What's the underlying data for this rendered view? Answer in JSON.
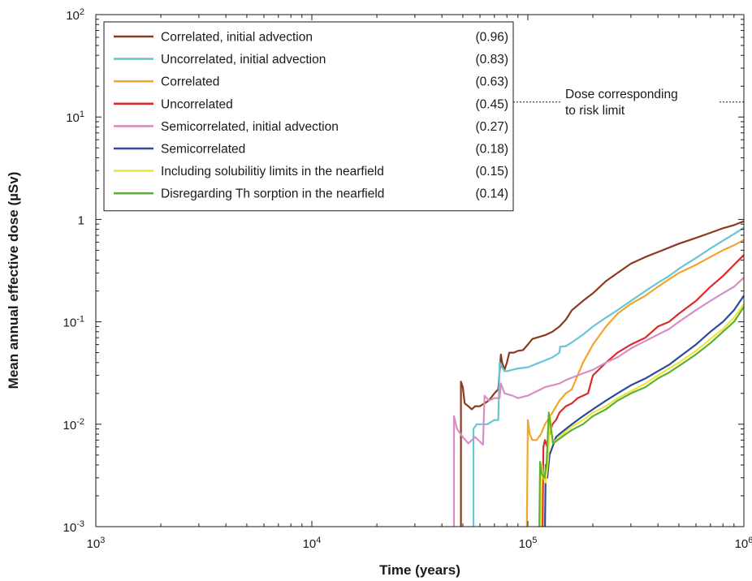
{
  "chart_data": {
    "type": "line",
    "title": "",
    "xlabel": "Time (years)",
    "ylabel": "Mean annual effective dose (µSv)",
    "xscale": "log",
    "yscale": "log",
    "xlim": [
      1000,
      1000000
    ],
    "ylim": [
      0.001,
      100
    ],
    "grid": false,
    "legend_position": "top-left",
    "x_ticks": [
      {
        "value": 1000,
        "base": "10",
        "exp": "3"
      },
      {
        "value": 10000,
        "base": "10",
        "exp": "4"
      },
      {
        "value": 100000,
        "base": "10",
        "exp": "5"
      },
      {
        "value": 1000000,
        "base": "10",
        "exp": "6"
      }
    ],
    "y_ticks": [
      {
        "value": 0.001,
        "base": "10",
        "exp": "-3"
      },
      {
        "value": 0.01,
        "base": "10",
        "exp": "-2"
      },
      {
        "value": 0.1,
        "base": "10",
        "exp": "-1"
      },
      {
        "value": 1,
        "base": "1",
        "exp": ""
      },
      {
        "value": 10,
        "base": "10",
        "exp": "1"
      },
      {
        "value": 100,
        "base": "10",
        "exp": "2"
      }
    ],
    "reference_line": {
      "value": 14,
      "label_lines": [
        "Dose corresponding",
        "to risk limit"
      ]
    },
    "series": [
      {
        "name": "Correlated, initial advection",
        "legend_value": "(0.96)",
        "color": "#8b3a22",
        "x": [
          49000,
          49000,
          50000,
          51000,
          53000,
          55000,
          57000,
          60000,
          63000,
          66000,
          70000,
          73000,
          75000,
          76000,
          78000,
          80000,
          82000,
          86000,
          90000,
          95000,
          100000,
          105000,
          110000,
          120000,
          130000,
          140000,
          150000,
          160000,
          180000,
          200000,
          230000,
          260000,
          300000,
          350000,
          400000,
          450000,
          500000,
          600000,
          700000,
          800000,
          900000,
          1000000
        ],
        "y": [
          0.001,
          0.026,
          0.023,
          0.016,
          0.015,
          0.014,
          0.015,
          0.015,
          0.016,
          0.017,
          0.02,
          0.022,
          0.048,
          0.04,
          0.034,
          0.04,
          0.05,
          0.05,
          0.052,
          0.053,
          0.06,
          0.068,
          0.07,
          0.074,
          0.08,
          0.09,
          0.105,
          0.13,
          0.16,
          0.19,
          0.25,
          0.3,
          0.37,
          0.43,
          0.48,
          0.53,
          0.58,
          0.66,
          0.74,
          0.82,
          0.88,
          0.96
        ]
      },
      {
        "name": "Uncorrelated, initial advection",
        "legend_value": "(0.83)",
        "color": "#67c6d6",
        "x": [
          56000,
          56000,
          58000,
          61000,
          65000,
          70000,
          73000,
          74000,
          76000,
          78000,
          80000,
          85000,
          90000,
          100000,
          110000,
          120000,
          130000,
          140000,
          141000,
          150000,
          160000,
          180000,
          200000,
          230000,
          260000,
          300000,
          350000,
          400000,
          450000,
          500000,
          600000,
          700000,
          800000,
          900000,
          1000000
        ],
        "y": [
          0.001,
          0.009,
          0.01,
          0.01,
          0.01,
          0.011,
          0.011,
          0.04,
          0.036,
          0.033,
          0.033,
          0.034,
          0.035,
          0.036,
          0.039,
          0.042,
          0.045,
          0.05,
          0.057,
          0.058,
          0.063,
          0.075,
          0.09,
          0.11,
          0.13,
          0.16,
          0.2,
          0.24,
          0.28,
          0.33,
          0.42,
          0.52,
          0.62,
          0.72,
          0.83
        ]
      },
      {
        "name": "Correlated",
        "legend_value": "(0.63)",
        "color": "#f2a42b",
        "x": [
          99000,
          100000,
          102000,
          105000,
          110000,
          115000,
          120000,
          130000,
          140000,
          150000,
          160000,
          170000,
          180000,
          200000,
          230000,
          260000,
          300000,
          350000,
          400000,
          450000,
          500000,
          600000,
          700000,
          800000,
          900000,
          1000000
        ],
        "y": [
          0.001,
          0.011,
          0.008,
          0.007,
          0.007,
          0.008,
          0.01,
          0.013,
          0.017,
          0.02,
          0.022,
          0.03,
          0.04,
          0.06,
          0.09,
          0.12,
          0.15,
          0.18,
          0.22,
          0.26,
          0.3,
          0.36,
          0.43,
          0.5,
          0.56,
          0.63
        ]
      },
      {
        "name": "Uncorrelated",
        "legend_value": "(0.45)",
        "color": "#dc2a2a",
        "x": [
          117000,
          118000,
          120000,
          123000,
          126000,
          130000,
          135000,
          140000,
          150000,
          160000,
          170000,
          180000,
          190000,
          200000,
          230000,
          260000,
          300000,
          350000,
          400000,
          450000,
          500000,
          600000,
          700000,
          800000,
          900000,
          1000000
        ],
        "y": [
          0.001,
          0.006,
          0.007,
          0.006,
          0.008,
          0.01,
          0.011,
          0.013,
          0.015,
          0.016,
          0.018,
          0.019,
          0.02,
          0.03,
          0.04,
          0.05,
          0.06,
          0.07,
          0.09,
          0.1,
          0.12,
          0.16,
          0.22,
          0.28,
          0.36,
          0.45
        ]
      },
      {
        "name": "Semicorrelated, initial advection",
        "legend_value": "(0.27)",
        "color": "#d68ec4",
        "x": [
          45500,
          45500,
          47000,
          50000,
          53000,
          57000,
          62000,
          63000,
          66000,
          70000,
          74000,
          75000,
          78000,
          85000,
          90000,
          100000,
          110000,
          120000,
          130000,
          140000,
          150000,
          170000,
          200000,
          230000,
          260000,
          300000,
          350000,
          400000,
          450000,
          500000,
          600000,
          700000,
          800000,
          900000,
          1000000
        ],
        "y": [
          0.001,
          0.012,
          0.009,
          0.0075,
          0.0065,
          0.0075,
          0.0063,
          0.019,
          0.017,
          0.018,
          0.018,
          0.025,
          0.02,
          0.019,
          0.018,
          0.019,
          0.021,
          0.023,
          0.024,
          0.025,
          0.027,
          0.03,
          0.034,
          0.04,
          0.045,
          0.055,
          0.065,
          0.075,
          0.085,
          0.1,
          0.13,
          0.16,
          0.19,
          0.22,
          0.27
        ]
      },
      {
        "name": "Semicorrelated",
        "legend_value": "(0.18)",
        "color": "#2b4a9a",
        "x": [
          120000,
          121000,
          123000,
          126000,
          130000,
          135000,
          140000,
          150000,
          160000,
          180000,
          200000,
          230000,
          260000,
          300000,
          350000,
          400000,
          450000,
          500000,
          600000,
          700000,
          800000,
          900000,
          1000000
        ],
        "y": [
          0.001,
          0.004,
          0.003,
          0.005,
          0.006,
          0.0075,
          0.008,
          0.009,
          0.01,
          0.012,
          0.014,
          0.017,
          0.02,
          0.024,
          0.028,
          0.033,
          0.038,
          0.045,
          0.06,
          0.08,
          0.1,
          0.13,
          0.18
        ]
      },
      {
        "name": "Including solubilitiy limits in the nearfield",
        "legend_value": "(0.15)",
        "color": "#f0e63a",
        "x": [
          115000,
          116000,
          118000,
          121000,
          124000,
          127000,
          130000,
          135000,
          140000,
          150000,
          160000,
          180000,
          200000,
          230000,
          260000,
          300000,
          350000,
          400000,
          450000,
          500000,
          600000,
          700000,
          800000,
          900000,
          1000000
        ],
        "y": [
          0.001,
          0.004,
          0.003,
          0.0027,
          0.0045,
          0.012,
          0.0065,
          0.007,
          0.0075,
          0.0085,
          0.0095,
          0.011,
          0.013,
          0.015,
          0.018,
          0.021,
          0.025,
          0.03,
          0.035,
          0.04,
          0.052,
          0.068,
          0.085,
          0.11,
          0.15
        ]
      },
      {
        "name": "Disregarding Th sorption in the nearfield",
        "legend_value": "(0.14)",
        "color": "#5cb034",
        "x": [
          113000,
          114000,
          116000,
          119000,
          122000,
          125000,
          128000,
          131000,
          135000,
          140000,
          150000,
          160000,
          180000,
          200000,
          230000,
          260000,
          300000,
          350000,
          400000,
          450000,
          500000,
          600000,
          700000,
          800000,
          900000,
          1000000
        ],
        "y": [
          0.001,
          0.0043,
          0.0033,
          0.003,
          0.004,
          0.013,
          0.009,
          0.0065,
          0.0068,
          0.0072,
          0.008,
          0.0088,
          0.01,
          0.012,
          0.014,
          0.017,
          0.02,
          0.023,
          0.028,
          0.032,
          0.037,
          0.048,
          0.062,
          0.08,
          0.1,
          0.14
        ]
      }
    ]
  }
}
